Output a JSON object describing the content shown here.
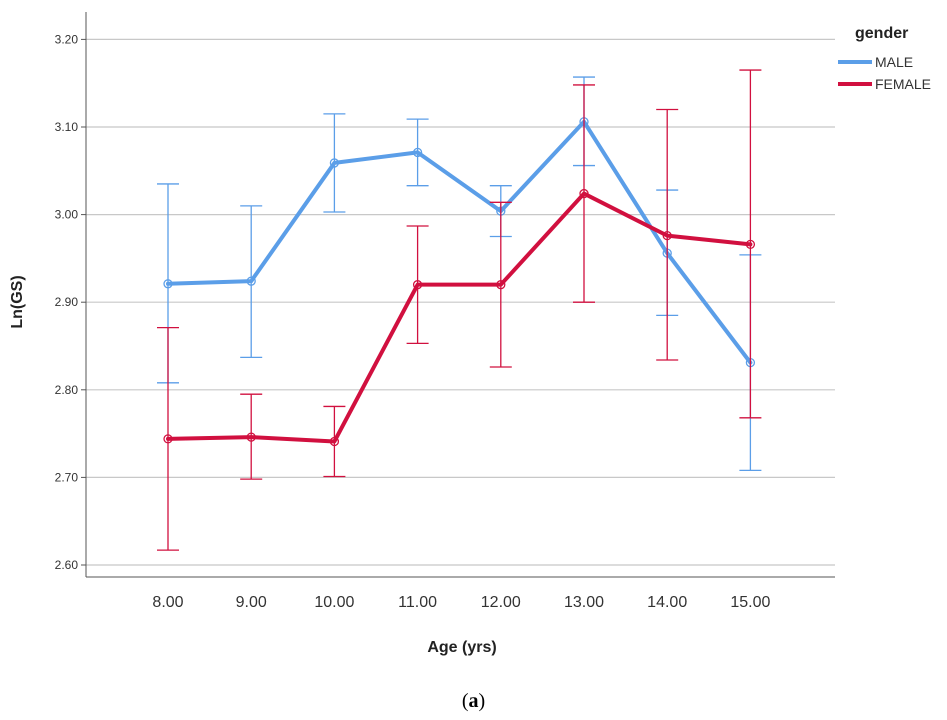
{
  "chart_data": {
    "type": "line",
    "xlabel": "Age (yrs)",
    "ylabel": "Ln(GS)",
    "ylim": [
      2.6,
      3.2
    ],
    "yticks": [
      "2.60",
      "2.70",
      "2.80",
      "2.90",
      "3.00",
      "3.10",
      "3.20"
    ],
    "categories": [
      "8.00",
      "9.00",
      "10.00",
      "11.00",
      "12.00",
      "13.00",
      "14.00",
      "15.00"
    ],
    "grid": "horizontal",
    "legend": {
      "title": "gender",
      "position": "top-right"
    },
    "series": [
      {
        "name": "MALE",
        "color": "#5b9ee8",
        "values": [
          2.921,
          2.924,
          3.059,
          3.071,
          3.004,
          3.106,
          2.956,
          2.831
        ],
        "err_low": [
          2.808,
          2.837,
          3.003,
          3.033,
          2.975,
          3.056,
          2.885,
          2.708
        ],
        "err_high": [
          3.035,
          3.01,
          3.115,
          3.109,
          3.033,
          3.157,
          3.028,
          2.954
        ]
      },
      {
        "name": "FEMALE",
        "color": "#d1103f",
        "values": [
          2.744,
          2.746,
          2.741,
          2.92,
          2.92,
          3.024,
          2.976,
          2.966
        ],
        "err_low": [
          2.617,
          2.698,
          2.701,
          2.853,
          2.826,
          2.9,
          2.834,
          2.768
        ],
        "err_high": [
          2.871,
          2.795,
          2.781,
          2.987,
          3.014,
          3.148,
          3.12,
          3.165
        ]
      }
    ]
  },
  "caption": {
    "open": "(",
    "letter": "a",
    "close": ")"
  }
}
